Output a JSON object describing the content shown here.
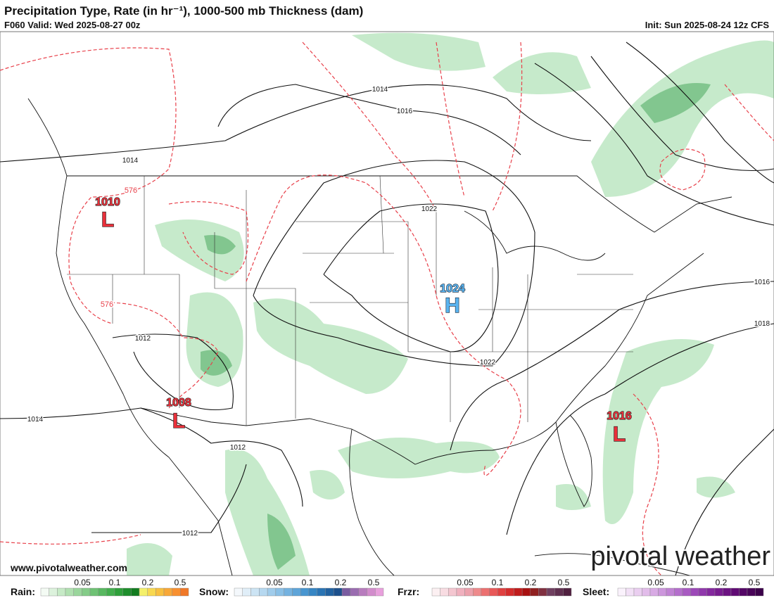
{
  "header": {
    "title": "Precipitation Type, Rate (in hr⁻¹), 1000-500 mb Thickness (dam)",
    "valid": "F060 Valid: Wed 2025-08-27 00z",
    "init": "Init: Sun 2025-08-24 12z CFS"
  },
  "map": {
    "pressure_centers": [
      {
        "value": 1010,
        "letter": "L"
      },
      {
        "value": 1008,
        "letter": "L"
      },
      {
        "value": 1016,
        "letter": "L"
      },
      {
        "value": 1024,
        "letter": "H"
      }
    ],
    "isobar_labels": [
      1014,
      1016,
      1014,
      1022,
      1016,
      1018,
      1012,
      1022,
      1014,
      1012,
      1012
    ],
    "thickness_labels": [
      576,
      576
    ]
  },
  "legend": [
    {
      "name": "Rain:",
      "ticks": [
        0.05,
        0.1,
        0.2,
        0.5
      ]
    },
    {
      "name": "Snow:",
      "ticks": [
        0.05,
        0.1,
        0.2,
        0.5
      ]
    },
    {
      "name": "Frzr:",
      "ticks": [
        0.05,
        0.1,
        0.2,
        0.5
      ]
    },
    {
      "name": "Sleet:",
      "ticks": [
        0.05,
        0.1,
        0.2,
        0.5
      ]
    }
  ],
  "watermark": {
    "url": "www.pivotalweather.com",
    "logo": "pivotal weather"
  }
}
